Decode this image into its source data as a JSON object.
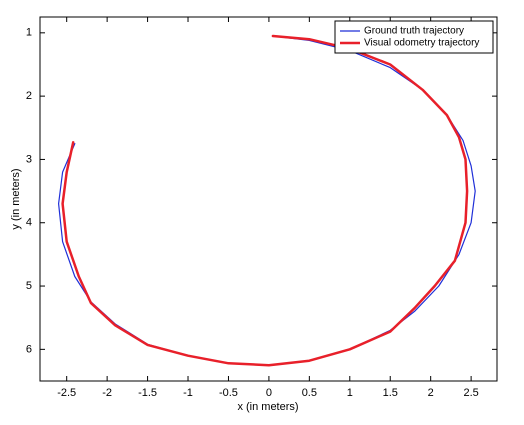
{
  "chart_data": {
    "type": "line",
    "x_label": "x (in meters)",
    "y_label": "y (in meters)",
    "xlim": [
      -2.83,
      2.82
    ],
    "ylim": [
      0.75,
      6.5
    ],
    "y_inverted": true,
    "xticks": [
      -2.5,
      -2,
      -1.5,
      -1,
      -0.5,
      0,
      0.5,
      1,
      1.5,
      2,
      2.5
    ],
    "yticks": [
      1,
      2,
      3,
      4,
      5,
      6
    ],
    "legend": "upper right",
    "series": [
      {
        "name": "Ground truth trajectory",
        "color": "#1f2fd8",
        "width": 1.2,
        "x": [
          0.05,
          0.5,
          1.0,
          1.5,
          1.9,
          2.2,
          2.4,
          2.5,
          2.55,
          2.5,
          2.35,
          2.1,
          1.8,
          1.5,
          1.0,
          0.5,
          0,
          -0.5,
          -1.0,
          -1.5,
          -1.9,
          -2.2,
          -2.4,
          -2.55,
          -2.6,
          -2.55,
          -2.4
        ],
        "values": [
          1.05,
          1.12,
          1.28,
          1.55,
          1.9,
          2.3,
          2.7,
          3.1,
          3.5,
          4.0,
          4.5,
          5.0,
          5.4,
          5.7,
          6.0,
          6.18,
          6.25,
          6.22,
          6.1,
          5.92,
          5.6,
          5.25,
          4.85,
          4.3,
          3.7,
          3.2,
          2.75
        ]
      },
      {
        "name": "Visual odometry trajectory",
        "color": "#e8202a",
        "width": 2.5,
        "x": [
          0.05,
          0.5,
          1.0,
          1.5,
          1.9,
          2.2,
          2.35,
          2.43,
          2.45,
          2.43,
          2.3,
          2.05,
          1.8,
          1.5,
          1.0,
          0.5,
          0,
          -0.5,
          -1.0,
          -1.5,
          -1.9,
          -2.2,
          -2.35,
          -2.5,
          -2.55,
          -2.5,
          -2.42
        ],
        "values": [
          1.05,
          1.1,
          1.25,
          1.5,
          1.9,
          2.3,
          2.65,
          3.0,
          3.5,
          4.0,
          4.6,
          5.0,
          5.35,
          5.72,
          6.0,
          6.18,
          6.25,
          6.22,
          6.1,
          5.93,
          5.62,
          5.27,
          4.85,
          4.3,
          3.7,
          3.2,
          2.73
        ]
      }
    ]
  }
}
